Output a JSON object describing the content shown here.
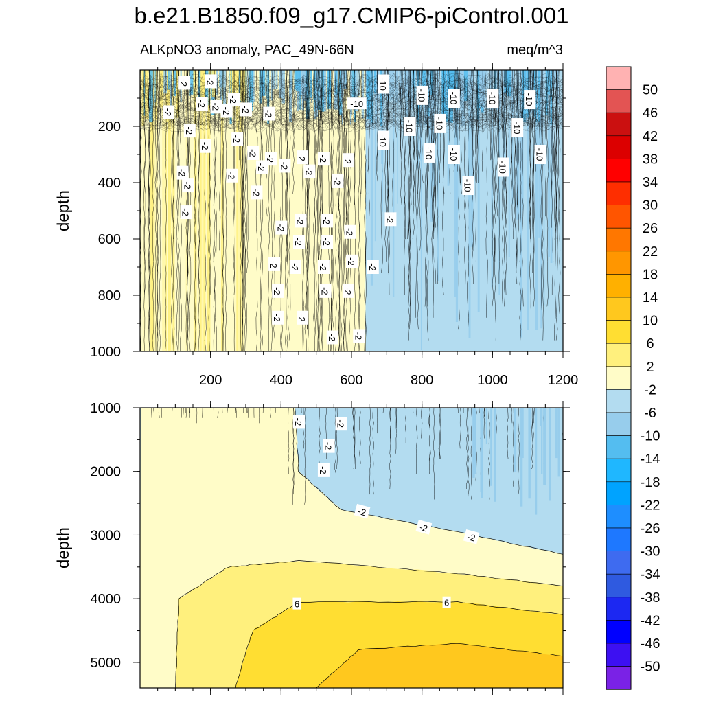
{
  "figure": {
    "title": "b.e21.B1850.f09_g17.CMIP6-piControl.001",
    "left_string": "ALKpNO3 anomaly, PAC_49N-66N",
    "right_string": "meq/m^3"
  },
  "chart_data": [
    {
      "type": "contour",
      "panel": "upper",
      "x": {
        "range": [
          0,
          1200
        ],
        "ticks": [
          200,
          400,
          600,
          800,
          1000,
          1200
        ],
        "label": ""
      },
      "y": {
        "label": "depth",
        "range": [
          0,
          1000
        ],
        "reversed": true,
        "ticks": [
          200,
          400,
          600,
          800,
          1000
        ]
      },
      "filled_regions": [
        {
          "x_range": [
            0,
            640
          ],
          "level": "-2 to 2"
        },
        {
          "x_range": [
            640,
            1200
          ],
          "level": "-6 to -2"
        },
        {
          "x_range": [
            0,
            1200
          ],
          "depth_range": [
            0,
            200
          ],
          "level": "-10 to -14 (noisy)"
        }
      ],
      "contour_labels": [
        {
          "text": "-2",
          "x": 125,
          "y": 45
        },
        {
          "text": "-2",
          "x": 200,
          "y": 40
        },
        {
          "text": "-2",
          "x": 265,
          "y": 105
        },
        {
          "text": "-2",
          "x": 215,
          "y": 130
        },
        {
          "text": "-2",
          "x": 80,
          "y": 150
        },
        {
          "text": "-2",
          "x": 175,
          "y": 120
        },
        {
          "text": "-2",
          "x": 245,
          "y": 145
        },
        {
          "text": "-2",
          "x": 300,
          "y": 140
        },
        {
          "text": "-2",
          "x": 365,
          "y": 155
        },
        {
          "text": "-10",
          "x": 690,
          "y": 50
        },
        {
          "text": "-10",
          "x": 800,
          "y": 90
        },
        {
          "text": "-10",
          "x": 890,
          "y": 100
        },
        {
          "text": "-10",
          "x": 1000,
          "y": 100
        },
        {
          "text": "-10",
          "x": 1105,
          "y": 105
        },
        {
          "text": "-10",
          "x": 615,
          "y": 120
        },
        {
          "text": "-10",
          "x": 765,
          "y": 200
        },
        {
          "text": "-10",
          "x": 850,
          "y": 190
        },
        {
          "text": "-10",
          "x": 1070,
          "y": 205
        },
        {
          "text": "-10",
          "x": 690,
          "y": 250
        },
        {
          "text": "-10",
          "x": 820,
          "y": 295
        },
        {
          "text": "-10",
          "x": 890,
          "y": 300
        },
        {
          "text": "-10",
          "x": 1135,
          "y": 300
        },
        {
          "text": "-10",
          "x": 930,
          "y": 410
        },
        {
          "text": "-10",
          "x": 1030,
          "y": 345
        },
        {
          "text": "-2",
          "x": 140,
          "y": 215
        },
        {
          "text": "-2",
          "x": 185,
          "y": 270
        },
        {
          "text": "-2",
          "x": 275,
          "y": 245
        },
        {
          "text": "-2",
          "x": 320,
          "y": 295
        },
        {
          "text": "-2",
          "x": 370,
          "y": 315
        },
        {
          "text": "-2",
          "x": 460,
          "y": 310
        },
        {
          "text": "-2",
          "x": 520,
          "y": 315
        },
        {
          "text": "-2",
          "x": 590,
          "y": 320
        },
        {
          "text": "-2",
          "x": 120,
          "y": 365
        },
        {
          "text": "-2",
          "x": 135,
          "y": 410
        },
        {
          "text": "-2",
          "x": 260,
          "y": 375
        },
        {
          "text": "-2",
          "x": 345,
          "y": 345
        },
        {
          "text": "-2",
          "x": 410,
          "y": 340
        },
        {
          "text": "-2",
          "x": 480,
          "y": 360
        },
        {
          "text": "-2",
          "x": 560,
          "y": 395
        },
        {
          "text": "-2",
          "x": 330,
          "y": 435
        },
        {
          "text": "-2",
          "x": 130,
          "y": 505
        },
        {
          "text": "-2",
          "x": 400,
          "y": 560
        },
        {
          "text": "-2",
          "x": 455,
          "y": 535
        },
        {
          "text": "-2",
          "x": 530,
          "y": 535
        },
        {
          "text": "-2",
          "x": 710,
          "y": 530
        },
        {
          "text": "-2",
          "x": 595,
          "y": 575
        },
        {
          "text": "-2",
          "x": 450,
          "y": 610
        },
        {
          "text": "-2",
          "x": 530,
          "y": 610
        },
        {
          "text": "-2",
          "x": 380,
          "y": 690
        },
        {
          "text": "-2",
          "x": 440,
          "y": 700
        },
        {
          "text": "-2",
          "x": 520,
          "y": 700
        },
        {
          "text": "-2",
          "x": 600,
          "y": 680
        },
        {
          "text": "-2",
          "x": 660,
          "y": 700
        },
        {
          "text": "-2",
          "x": 390,
          "y": 785
        },
        {
          "text": "-2",
          "x": 525,
          "y": 785
        },
        {
          "text": "-2",
          "x": 590,
          "y": 785
        },
        {
          "text": "-2",
          "x": 390,
          "y": 880
        },
        {
          "text": "-2",
          "x": 460,
          "y": 880
        },
        {
          "text": "-2",
          "x": 545,
          "y": 950
        },
        {
          "text": "-2",
          "x": 620,
          "y": 945
        }
      ]
    },
    {
      "type": "contour",
      "panel": "lower",
      "x": {
        "range": [
          0,
          1200
        ],
        "ticks": [],
        "label": ""
      },
      "y": {
        "label": "depth",
        "range": [
          1000,
          5400
        ],
        "reversed": true,
        "ticks": [
          1000,
          2000,
          3000,
          4000,
          5000
        ]
      },
      "contour_lines": [
        {
          "level": -2,
          "path": [
            [
              0,
              1000
            ],
            [
              440,
              1000
            ],
            [
              450,
              2000
            ],
            [
              570,
              2600
            ],
            [
              900,
              2950
            ],
            [
              1200,
              3300
            ]
          ]
        },
        {
          "level": 2,
          "path": [
            [
              100,
              5400
            ],
            [
              110,
              4000
            ],
            [
              250,
              3500
            ],
            [
              450,
              3400
            ],
            [
              900,
              3600
            ],
            [
              1200,
              3800
            ]
          ]
        },
        {
          "level": 6,
          "path": [
            [
              270,
              5400
            ],
            [
              320,
              4500
            ],
            [
              450,
              4050
            ],
            [
              900,
              4050
            ],
            [
              1200,
              4250
            ]
          ]
        },
        {
          "level": 10,
          "path": [
            [
              500,
              5400
            ],
            [
              620,
              4800
            ],
            [
              900,
              4700
            ],
            [
              1200,
              4900
            ]
          ]
        }
      ],
      "contour_labels": [
        {
          "text": "-2",
          "x": 450,
          "y": 1220
        },
        {
          "text": "-2",
          "x": 570,
          "y": 1250
        },
        {
          "text": "-2",
          "x": 535,
          "y": 1600
        },
        {
          "text": "-2",
          "x": 520,
          "y": 1980
        },
        {
          "text": "-2",
          "x": 630,
          "y": 2630
        },
        {
          "text": "-2",
          "x": 805,
          "y": 2880
        },
        {
          "text": "-2",
          "x": 940,
          "y": 3030
        },
        {
          "text": "6",
          "x": 445,
          "y": 4080
        },
        {
          "text": "6",
          "x": 870,
          "y": 4060
        }
      ]
    }
  ],
  "colorbar": {
    "labels": [
      "50",
      "46",
      "42",
      "38",
      "34",
      "30",
      "26",
      "22",
      "18",
      "14",
      "10",
      "6",
      "2",
      "-2",
      "-6",
      "-10",
      "-14",
      "-18",
      "-22",
      "-26",
      "-30",
      "-34",
      "-38",
      "-42",
      "-46",
      "-50"
    ],
    "colors": [
      "#ffb2b2",
      "#e35453",
      "#cb1010",
      "#dc0000",
      "#ff0000",
      "#fe2e00",
      "#ff5500",
      "#ff7700",
      "#ff9600",
      "#ffb000",
      "#ffc81e",
      "#ffde32",
      "#fff07d",
      "#fffcc8",
      "#b3dcf0",
      "#97cdec",
      "#54bdf0",
      "#1fb7ff",
      "#00a3ff",
      "#1e8eff",
      "#1e78ff",
      "#3e6bf0",
      "#2f5ae0",
      "#1c28f2",
      "#0000ff",
      "#3d10f2",
      "#7a22e6"
    ]
  }
}
